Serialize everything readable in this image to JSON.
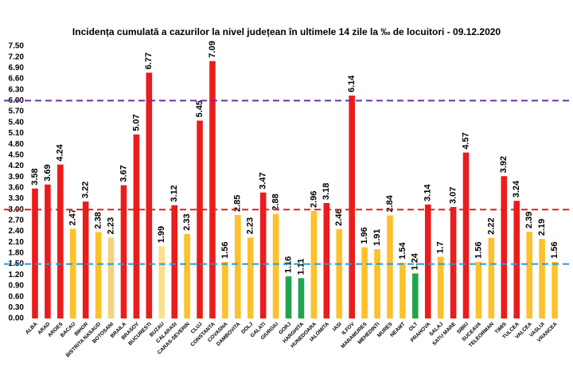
{
  "chart_data": {
    "type": "bar",
    "title": "Incidența cumulată a cazurilor la nivel județean în ultimele 14 zile la ‰ de locuitori - 09.12.2020",
    "categories": [
      "ALBA",
      "ARAD",
      "ARGES",
      "BACAU",
      "BIHOR",
      "BISTRITA NASAUD",
      "BOTOSANI",
      "BRAILA",
      "BRASOV",
      "BUCURESTI",
      "BUZAU",
      "CALARASI",
      "CARAS-SEVERIN",
      "CLUJ",
      "CONSTANTA",
      "COVASNA",
      "DAMBOVITA",
      "DOLJ",
      "GALATI",
      "GIURGIU",
      "GORJ",
      "HARGHITA",
      "HUNEDOARA",
      "IALOMITA",
      "IASI",
      "ILFOV",
      "MARAMURES",
      "MEHEDINTI",
      "MURES",
      "NEAMT",
      "OLT",
      "PRAHOVA",
      "SALAJ",
      "SATU MARE",
      "SIBIU",
      "SUCEAVA",
      "TELEORMAN",
      "TIMIS",
      "TULCEA",
      "VALCEA",
      "VASLUI",
      "VRANCEA"
    ],
    "values": [
      3.58,
      3.69,
      4.24,
      2.47,
      3.22,
      2.38,
      2.23,
      3.67,
      5.07,
      6.77,
      1.99,
      3.12,
      2.33,
      5.45,
      7.09,
      1.56,
      2.85,
      2.23,
      3.47,
      2.88,
      1.16,
      1.11,
      2.96,
      3.18,
      2.46,
      6.14,
      1.96,
      1.91,
      2.84,
      1.54,
      1.24,
      3.14,
      1.7,
      3.07,
      4.57,
      1.56,
      2.22,
      3.92,
      3.24,
      2.39,
      2.19,
      1.56
    ],
    "colors": [
      "#ea1c1c",
      "#ea1c1c",
      "#ea1c1c",
      "#fcc12b",
      "#ea1c1c",
      "#fcc12b",
      "#f7d27a",
      "#ea1c1c",
      "#ea1c1c",
      "#ea1c1c",
      "#fbe08a",
      "#ea1c1c",
      "#fcc12b",
      "#ea1c1c",
      "#ea1c1c",
      "#fcc12b",
      "#fcc12b",
      "#fcc12b",
      "#ea1c1c",
      "#fcc12b",
      "#1fa54e",
      "#1fa54e",
      "#fcc12b",
      "#ea1c1c",
      "#fcc12b",
      "#ea1c1c",
      "#fcc12b",
      "#fcc12b",
      "#fcc12b",
      "#fcc12b",
      "#1fa54e",
      "#ea1c1c",
      "#fcc12b",
      "#ea1c1c",
      "#ea1c1c",
      "#fcc12b",
      "#fcc12b",
      "#ea1c1c",
      "#ea1c1c",
      "#fcc12b",
      "#fcc12b",
      "#fcc12b"
    ],
    "ylim": [
      0,
      7.5
    ],
    "yticks": [
      {
        "value": 0,
        "label": "0.00"
      },
      {
        "value": 0.3,
        "label": "0.30"
      },
      {
        "value": 0.6,
        "label": "0.60"
      },
      {
        "value": 0.9,
        "label": "0.90"
      },
      {
        "value": 1.2,
        "label": "1.20"
      },
      {
        "value": 1.5,
        "label": "1.50"
      },
      {
        "value": 1.8,
        "label": "1.80"
      },
      {
        "value": 2.1,
        "label": "2.10"
      },
      {
        "value": 2.4,
        "label": "2.40"
      },
      {
        "value": 2.7,
        "label": "2.70"
      },
      {
        "value": 3,
        "label": "3.00"
      },
      {
        "value": 3.3,
        "label": "3.30"
      },
      {
        "value": 3.6,
        "label": "3.60"
      },
      {
        "value": 3.9,
        "label": "3.90"
      },
      {
        "value": 4.2,
        "label": "4.20"
      },
      {
        "value": 4.5,
        "label": "4.50"
      },
      {
        "value": 4.8,
        "label": "4.80"
      },
      {
        "value": 5.1,
        "label": "5.10"
      },
      {
        "value": 5.4,
        "label": "5.40"
      },
      {
        "value": 5.7,
        "label": "5.70"
      },
      {
        "value": 6,
        "label": "6.00"
      },
      {
        "value": 6.3,
        "label": "6.30"
      },
      {
        "value": 6.6,
        "label": "6.60"
      },
      {
        "value": 6.9,
        "label": "6.90"
      },
      {
        "value": 7.2,
        "label": "7.20"
      },
      {
        "value": 7.5,
        "label": "7.50"
      }
    ],
    "reference_lines": [
      {
        "value": 6,
        "color": "#7030a0"
      },
      {
        "value": 3,
        "color": "#e02020"
      },
      {
        "value": 1.5,
        "color": "#1e9ee0"
      }
    ],
    "grid": false
  }
}
